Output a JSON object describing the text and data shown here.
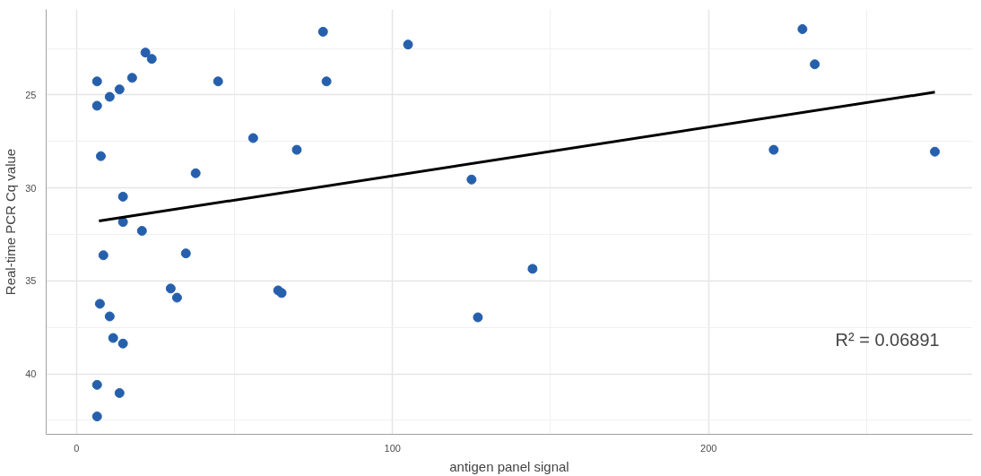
{
  "chart_data": {
    "type": "scatter",
    "xlabel": "antigen panel signal",
    "ylabel": "Real-time PCR Cq value",
    "annotations": [
      "R² = 0.06891"
    ],
    "xlim": [
      -9.6,
      283.5
    ],
    "ylim": [
      43.25,
      20.4
    ],
    "xticks": [
      0,
      100,
      200
    ],
    "yticks": [
      25,
      30,
      35,
      40
    ],
    "grid": true,
    "marker": "circle",
    "series": [
      {
        "color": "#2660ac",
        "x": [
          6.5,
          6.5,
          7.7,
          10.5,
          13.6,
          17.6,
          21.8,
          23.8,
          44.8,
          78,
          79.1,
          104.9,
          55.9,
          69.7,
          37.7,
          14.7,
          14.7,
          20.7,
          8.5,
          34.6,
          29.8,
          31.8,
          7.4,
          10.5,
          63.8,
          64.9,
          11.6,
          14.7,
          6.5,
          13.6,
          6.5,
          125,
          127,
          144.3,
          220.6,
          229.7,
          233.6,
          271.6
        ],
        "values": [
          24.27,
          25.58,
          28.29,
          25.1,
          24.7,
          24.08,
          22.72,
          23.06,
          24.27,
          21.6,
          24.27,
          22.29,
          27.32,
          27.95,
          29.21,
          30.47,
          31.83,
          32.31,
          33.62,
          33.52,
          35.41,
          35.9,
          36.23,
          36.91,
          35.51,
          35.65,
          38.07,
          38.37,
          40.59,
          41.03,
          42.29,
          29.55,
          36.96,
          34.35,
          27.95,
          21.46,
          23.35,
          28.05
        ]
      },
      {
        "type": "line",
        "marker": "none",
        "color": "#000000",
        "x": [
          7.1,
          271.6
        ],
        "values": [
          31.78,
          24.85
        ]
      }
    ]
  }
}
